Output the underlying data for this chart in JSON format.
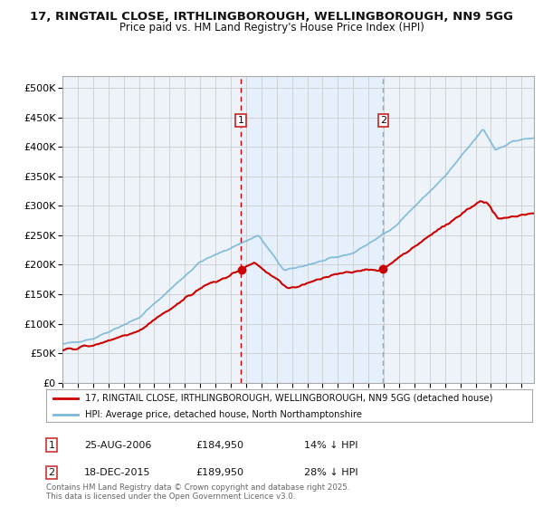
{
  "title_line1": "17, RINGTAIL CLOSE, IRTHLINGBOROUGH, WELLINGBOROUGH, NN9 5GG",
  "title_line2": "Price paid vs. HM Land Registry's House Price Index (HPI)",
  "ylim": [
    0,
    520000
  ],
  "yticks": [
    0,
    50000,
    100000,
    150000,
    200000,
    250000,
    300000,
    350000,
    400000,
    450000,
    500000
  ],
  "xlim_start": 1995.0,
  "xlim_end": 2025.8,
  "transaction1_date": 2006.65,
  "transaction1_price": 184950,
  "transaction2_date": 2015.96,
  "transaction2_price": 189950,
  "hpi_color": "#7bb8d8",
  "price_color": "#cc0000",
  "vline1_color": "#cc0000",
  "vline2_color": "#88aacc",
  "shading_color": "#ddeeff",
  "legend_label1": "17, RINGTAIL CLOSE, IRTHLINGBOROUGH, WELLINGBOROUGH, NN9 5GG (detached house)",
  "legend_label2": "HPI: Average price, detached house, North Northamptonshire",
  "annotation1_date": "25-AUG-2006",
  "annotation1_price": "£184,950",
  "annotation1_pct": "14% ↓ HPI",
  "annotation2_date": "18-DEC-2015",
  "annotation2_price": "£189,950",
  "annotation2_pct": "28% ↓ HPI",
  "footer_text": "Contains HM Land Registry data © Crown copyright and database right 2025.\nThis data is licensed under the Open Government Licence v3.0.",
  "bg_color": "#ffffff",
  "grid_color": "#cccccc",
  "plot_bg_color": "#eef3fa"
}
